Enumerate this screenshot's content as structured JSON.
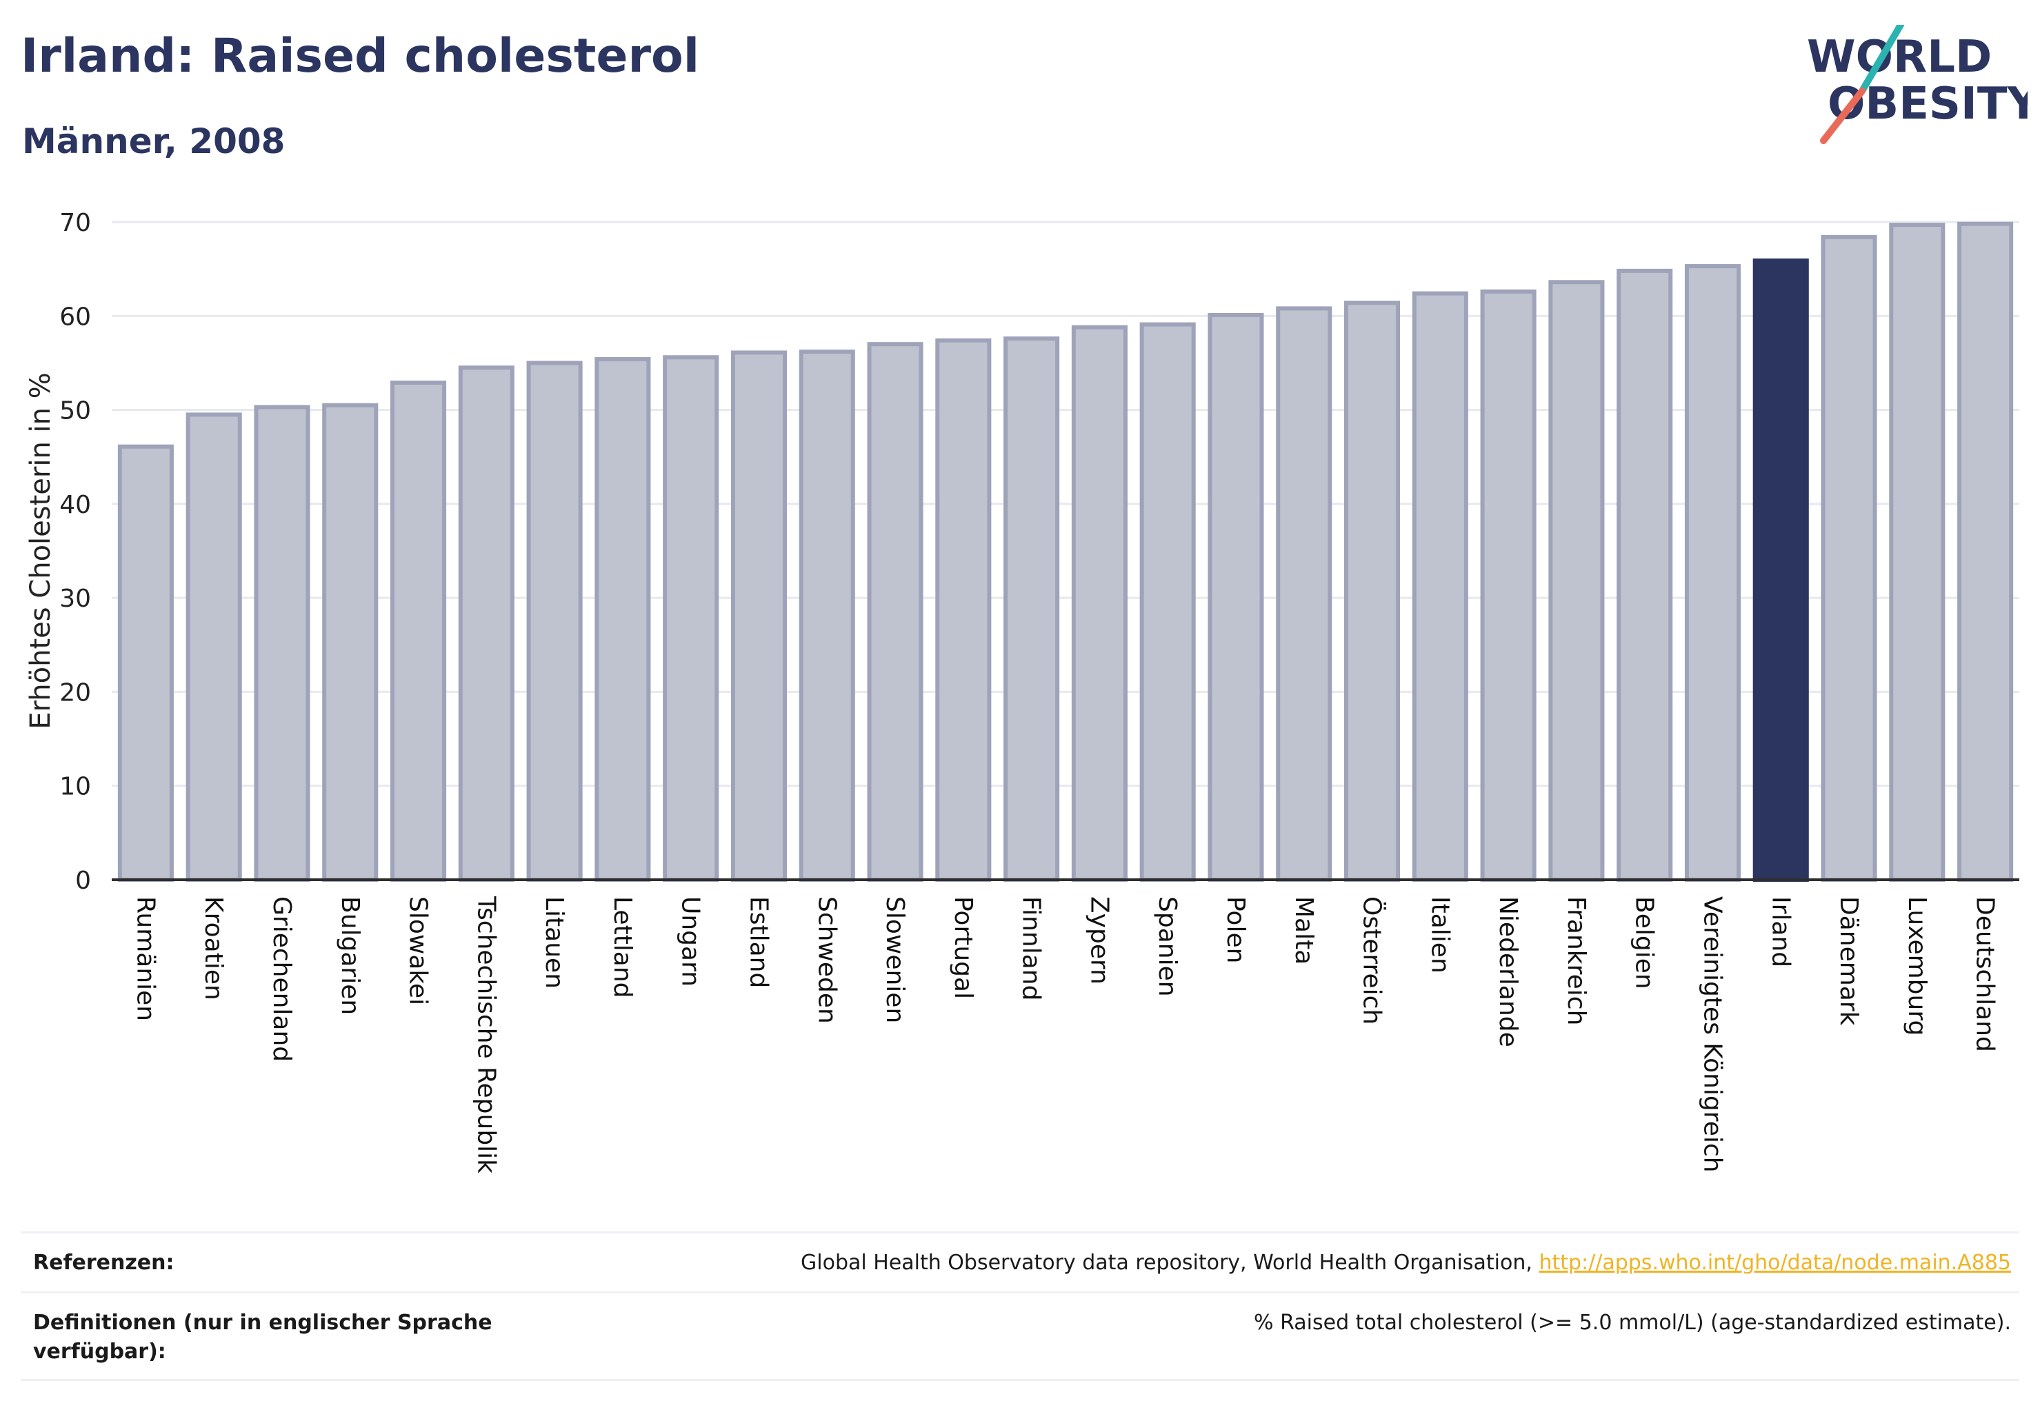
{
  "header": {
    "title": "Irland: Raised cholesterol",
    "subtitle": "Männer, 2008"
  },
  "logo": {
    "line1": "WORLD",
    "line2": "OBESITY",
    "colors": {
      "text": "#2b3560",
      "slash_teal": "#2ab3b1",
      "slash_coral": "#ea6a5a"
    }
  },
  "chart_data": {
    "type": "bar",
    "ylabel": "Erhöhtes Cholesterin in %",
    "xlabel": "",
    "ylim": [
      0,
      70
    ],
    "yticks": [
      0,
      10,
      20,
      30,
      40,
      50,
      60,
      70
    ],
    "grid": true,
    "highlight": "Irland",
    "colors": {
      "bar": "#bfc3d0",
      "bar_edge": "#9ea3b9",
      "highlight": "#2b3560",
      "grid": "#e8e9ef"
    },
    "categories": [
      "Rumänien",
      "Kroatien",
      "Griechenland",
      "Bulgarien",
      "Slowakei",
      "Tschechische Republik",
      "Litauen",
      "Lettland",
      "Ungarn",
      "Estland",
      "Schweden",
      "Slowenien",
      "Portugal",
      "Finnland",
      "Zypern",
      "Spanien",
      "Polen",
      "Malta",
      "Österreich",
      "Italien",
      "Niederlande",
      "Frankreich",
      "Belgien",
      "Vereinigtes Königreich",
      "Irland",
      "Dänemark",
      "Luxemburg",
      "Deutschland"
    ],
    "values": [
      46.1,
      49.5,
      50.3,
      50.5,
      52.9,
      54.5,
      55.0,
      55.4,
      55.6,
      56.1,
      56.2,
      57.0,
      57.4,
      57.6,
      58.8,
      59.1,
      60.1,
      60.8,
      61.4,
      62.4,
      62.6,
      63.6,
      64.8,
      65.3,
      65.9,
      68.4,
      69.7,
      69.8
    ]
  },
  "references": {
    "ref_label": "Referenzen:",
    "ref_text": "Global Health Observatory data repository, World Health Organisation, ",
    "ref_link": "http://apps.who.int/gho/data/node.main.A885",
    "def_label": "Definitionen (nur in englischer Sprache verfügbar):",
    "def_text": "% Raised total cholesterol (>= 5.0 mmol/L) (age-standardized estimate)."
  }
}
